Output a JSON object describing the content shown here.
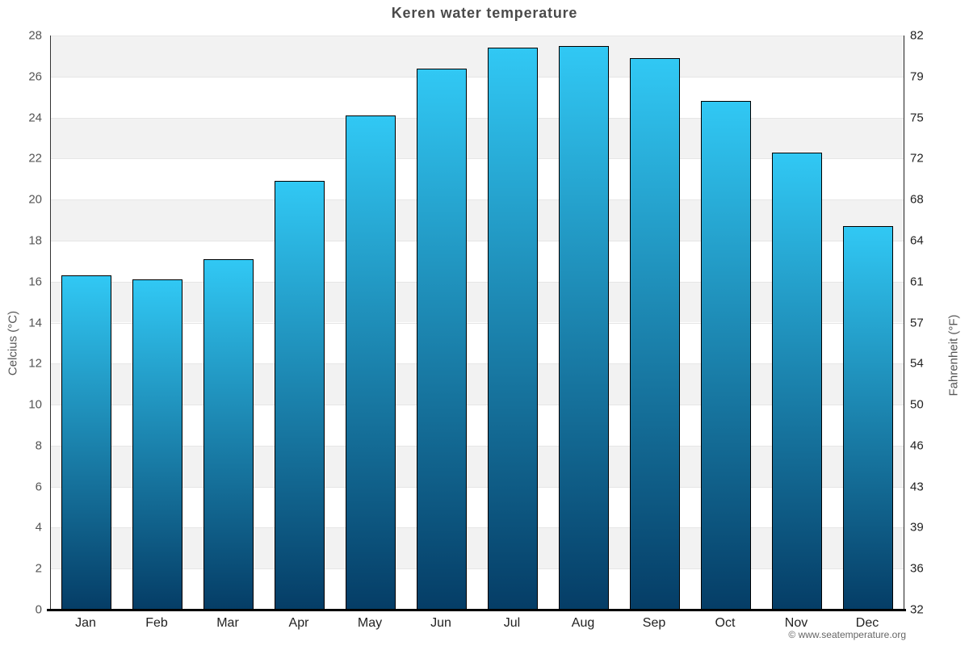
{
  "copyright": "© www.seatemperature.org",
  "chart_data": {
    "type": "bar",
    "title": "Keren water temperature",
    "categories": [
      "Jan",
      "Feb",
      "Mar",
      "Apr",
      "May",
      "Jun",
      "Jul",
      "Aug",
      "Sep",
      "Oct",
      "Nov",
      "Dec"
    ],
    "values": [
      16.3,
      16.1,
      17.1,
      20.9,
      24.1,
      26.4,
      27.4,
      27.5,
      26.9,
      24.8,
      22.3,
      18.7
    ],
    "unit": "°C",
    "xlabel": "",
    "ylabel_left": "Celcius (°C)",
    "ylabel_right": "Fahrenheit (°F)",
    "ylim": [
      0,
      28
    ],
    "yticks_left": [
      0,
      2,
      4,
      6,
      8,
      10,
      12,
      14,
      16,
      18,
      20,
      22,
      24,
      26,
      28
    ],
    "yticks_right": [
      32,
      36,
      39,
      43,
      46,
      50,
      54,
      57,
      61,
      64,
      68,
      72,
      75,
      79,
      82
    ],
    "legend": "none",
    "grid": "alternating-horizontal-bands",
    "bar_width_ratio": 0.7,
    "colors": {
      "bar_top": "#31c8f4",
      "bar_bottom": "#053d66",
      "bar_border": "#000000",
      "band": "#f2f2f2",
      "gridline": "#e6e6e6",
      "title_text": "#4a4a4a",
      "left_tick_text": "#555555",
      "right_tick_text": "#222222",
      "month_text": "#222222",
      "copyright_text": "#666666"
    }
  }
}
